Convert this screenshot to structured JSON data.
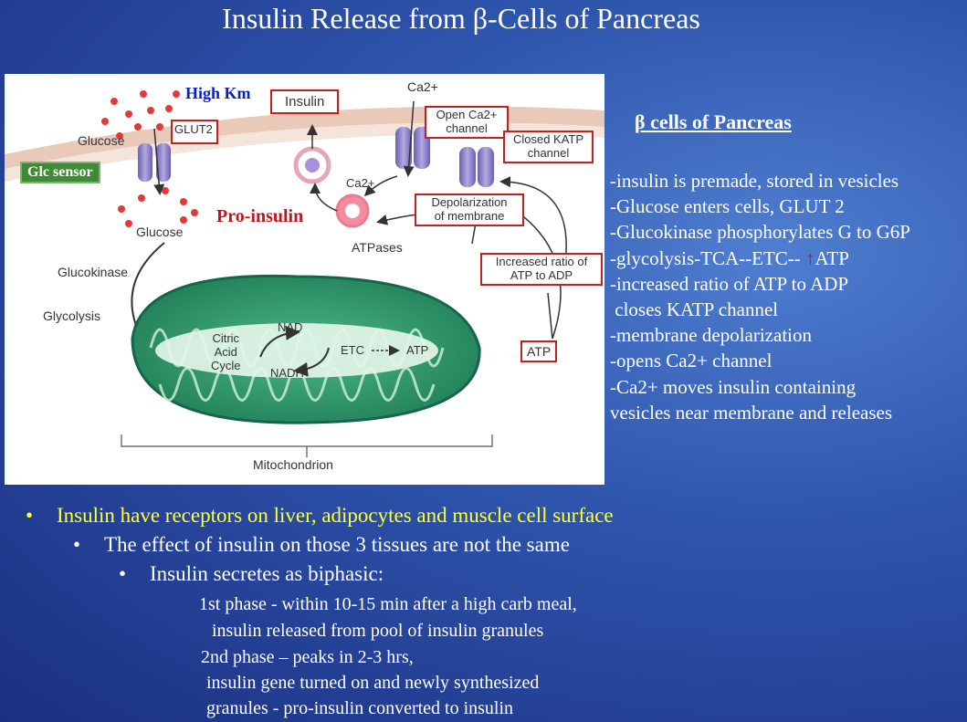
{
  "slide": {
    "title": "Insulin Release from β-Cells of Pancreas"
  },
  "figure": {
    "labels": {
      "high_km": "High Km",
      "insulin": "Insulin",
      "ca_top": "Ca2+",
      "open_ca_channel_1": "Open Ca2+",
      "open_ca_channel_2": "channel",
      "closed_katp_1": "Closed KATP",
      "closed_katp_2": "channel",
      "glucose_out": "Glucose",
      "glut2": "GLUT2",
      "glc_sensor": "Glc sensor",
      "ca_inner": "Ca2+",
      "pro_insulin": "Pro-insulin",
      "glucose_in": "Glucose",
      "depolarization_1": "Depolarization",
      "depolarization_2": "of membrane",
      "atpases": "ATPases",
      "ratio_1": "Increased ratio of",
      "ratio_2": "ATP to ADP",
      "glucokinase": "Glucokinase",
      "glycolysis": "Glycolysis",
      "nad": "NAD",
      "citric_1": "Citric",
      "citric_2": "Acid",
      "citric_3": "Cycle",
      "etc": "ETC",
      "atp_mito": "ATP",
      "nadh": "NADH",
      "atp_box": "ATP",
      "mitochondrion": "Mitochondrion"
    }
  },
  "right_panel": {
    "heading": "β cells of Pancreas",
    "lines": [
      "-insulin is premade, stored in vesicles",
      "-Glucose enters cells, GLUT 2",
      "-Glucokinase phosphorylates G to G6P",
      "-glycolysis-TCA--ETC--",
      "-increased ratio of ATP to ADP",
      " closes KATP channel",
      "-membrane depolarization",
      "-opens Ca2+ channel",
      "-Ca2+ moves insulin containing",
      "vesicles near membrane and releases"
    ],
    "atp_suffix": "ATP",
    "up_arrow": "↑"
  },
  "bullets": {
    "level1": "Insulin have receptors on liver, adipocytes and muscle cell surface",
    "level2": "The effect of insulin on those 3 tissues are not the same",
    "level3": "Insulin secretes as biphasic:",
    "phase1_line1": "1st phase - within 10-15 min after a high carb meal,",
    "phase1_line2": "insulin released from pool of insulin granules",
    "phase2_line1": "2nd phase – peaks in 2-3 hrs,",
    "phase2_line2": "insulin gene turned on and newly synthesized",
    "phase2_line3": "granules - pro-insulin converted to insulin"
  },
  "colors": {
    "accent_red": "#c81e1e",
    "high_km_blue": "#0a1fc9",
    "bullet_yellow": "#ffff33",
    "sensor_green": "#3e8a37",
    "mito_green": "#2f9a6a"
  }
}
